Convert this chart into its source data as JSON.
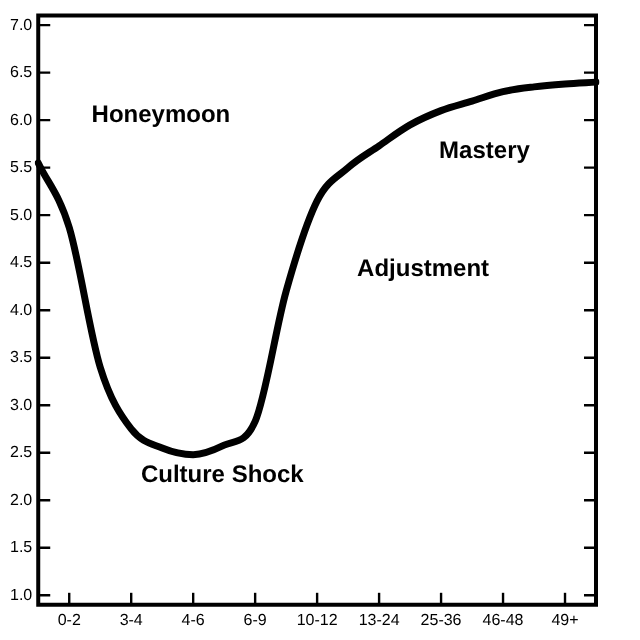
{
  "chart_data": {
    "type": "line",
    "categories": [
      null,
      "0-2",
      null,
      "3-4",
      null,
      "4-6",
      null,
      "6-9",
      null,
      "10-12",
      null,
      "13-24",
      null,
      "25-36",
      null,
      "46-48",
      null,
      "49+",
      null
    ],
    "series": [
      {
        "color": "#000000",
        "values": [
          5.55,
          4.87,
          3.4,
          2.75,
          2.55,
          2.48,
          2.58,
          2.83,
          4.2,
          5.15,
          5.5,
          5.73,
          5.95,
          6.1,
          6.2,
          6.3,
          6.35,
          6.38,
          6.4
        ]
      }
    ],
    "ylim": [
      0.9,
      7.1
    ],
    "yticks": [
      {
        "value": 1,
        "label": "1.0"
      },
      1.5,
      {
        "value": 2,
        "label": "2.0"
      },
      2.5,
      {
        "value": 3,
        "label": "3.0"
      },
      3.5,
      {
        "value": 4,
        "label": "4.0"
      },
      4.5,
      {
        "value": 5,
        "label": "5.0"
      },
      5.5,
      {
        "value": 6,
        "label": "6.0"
      },
      6.5,
      {
        "value": 7,
        "label": "7.0"
      }
    ],
    "grid": false,
    "legend": false,
    "marker": "none",
    "line_style": "solid",
    "annotations": [
      "Honeymoon",
      "Culture Shock",
      "Adjustment",
      "Mastery"
    ]
  }
}
